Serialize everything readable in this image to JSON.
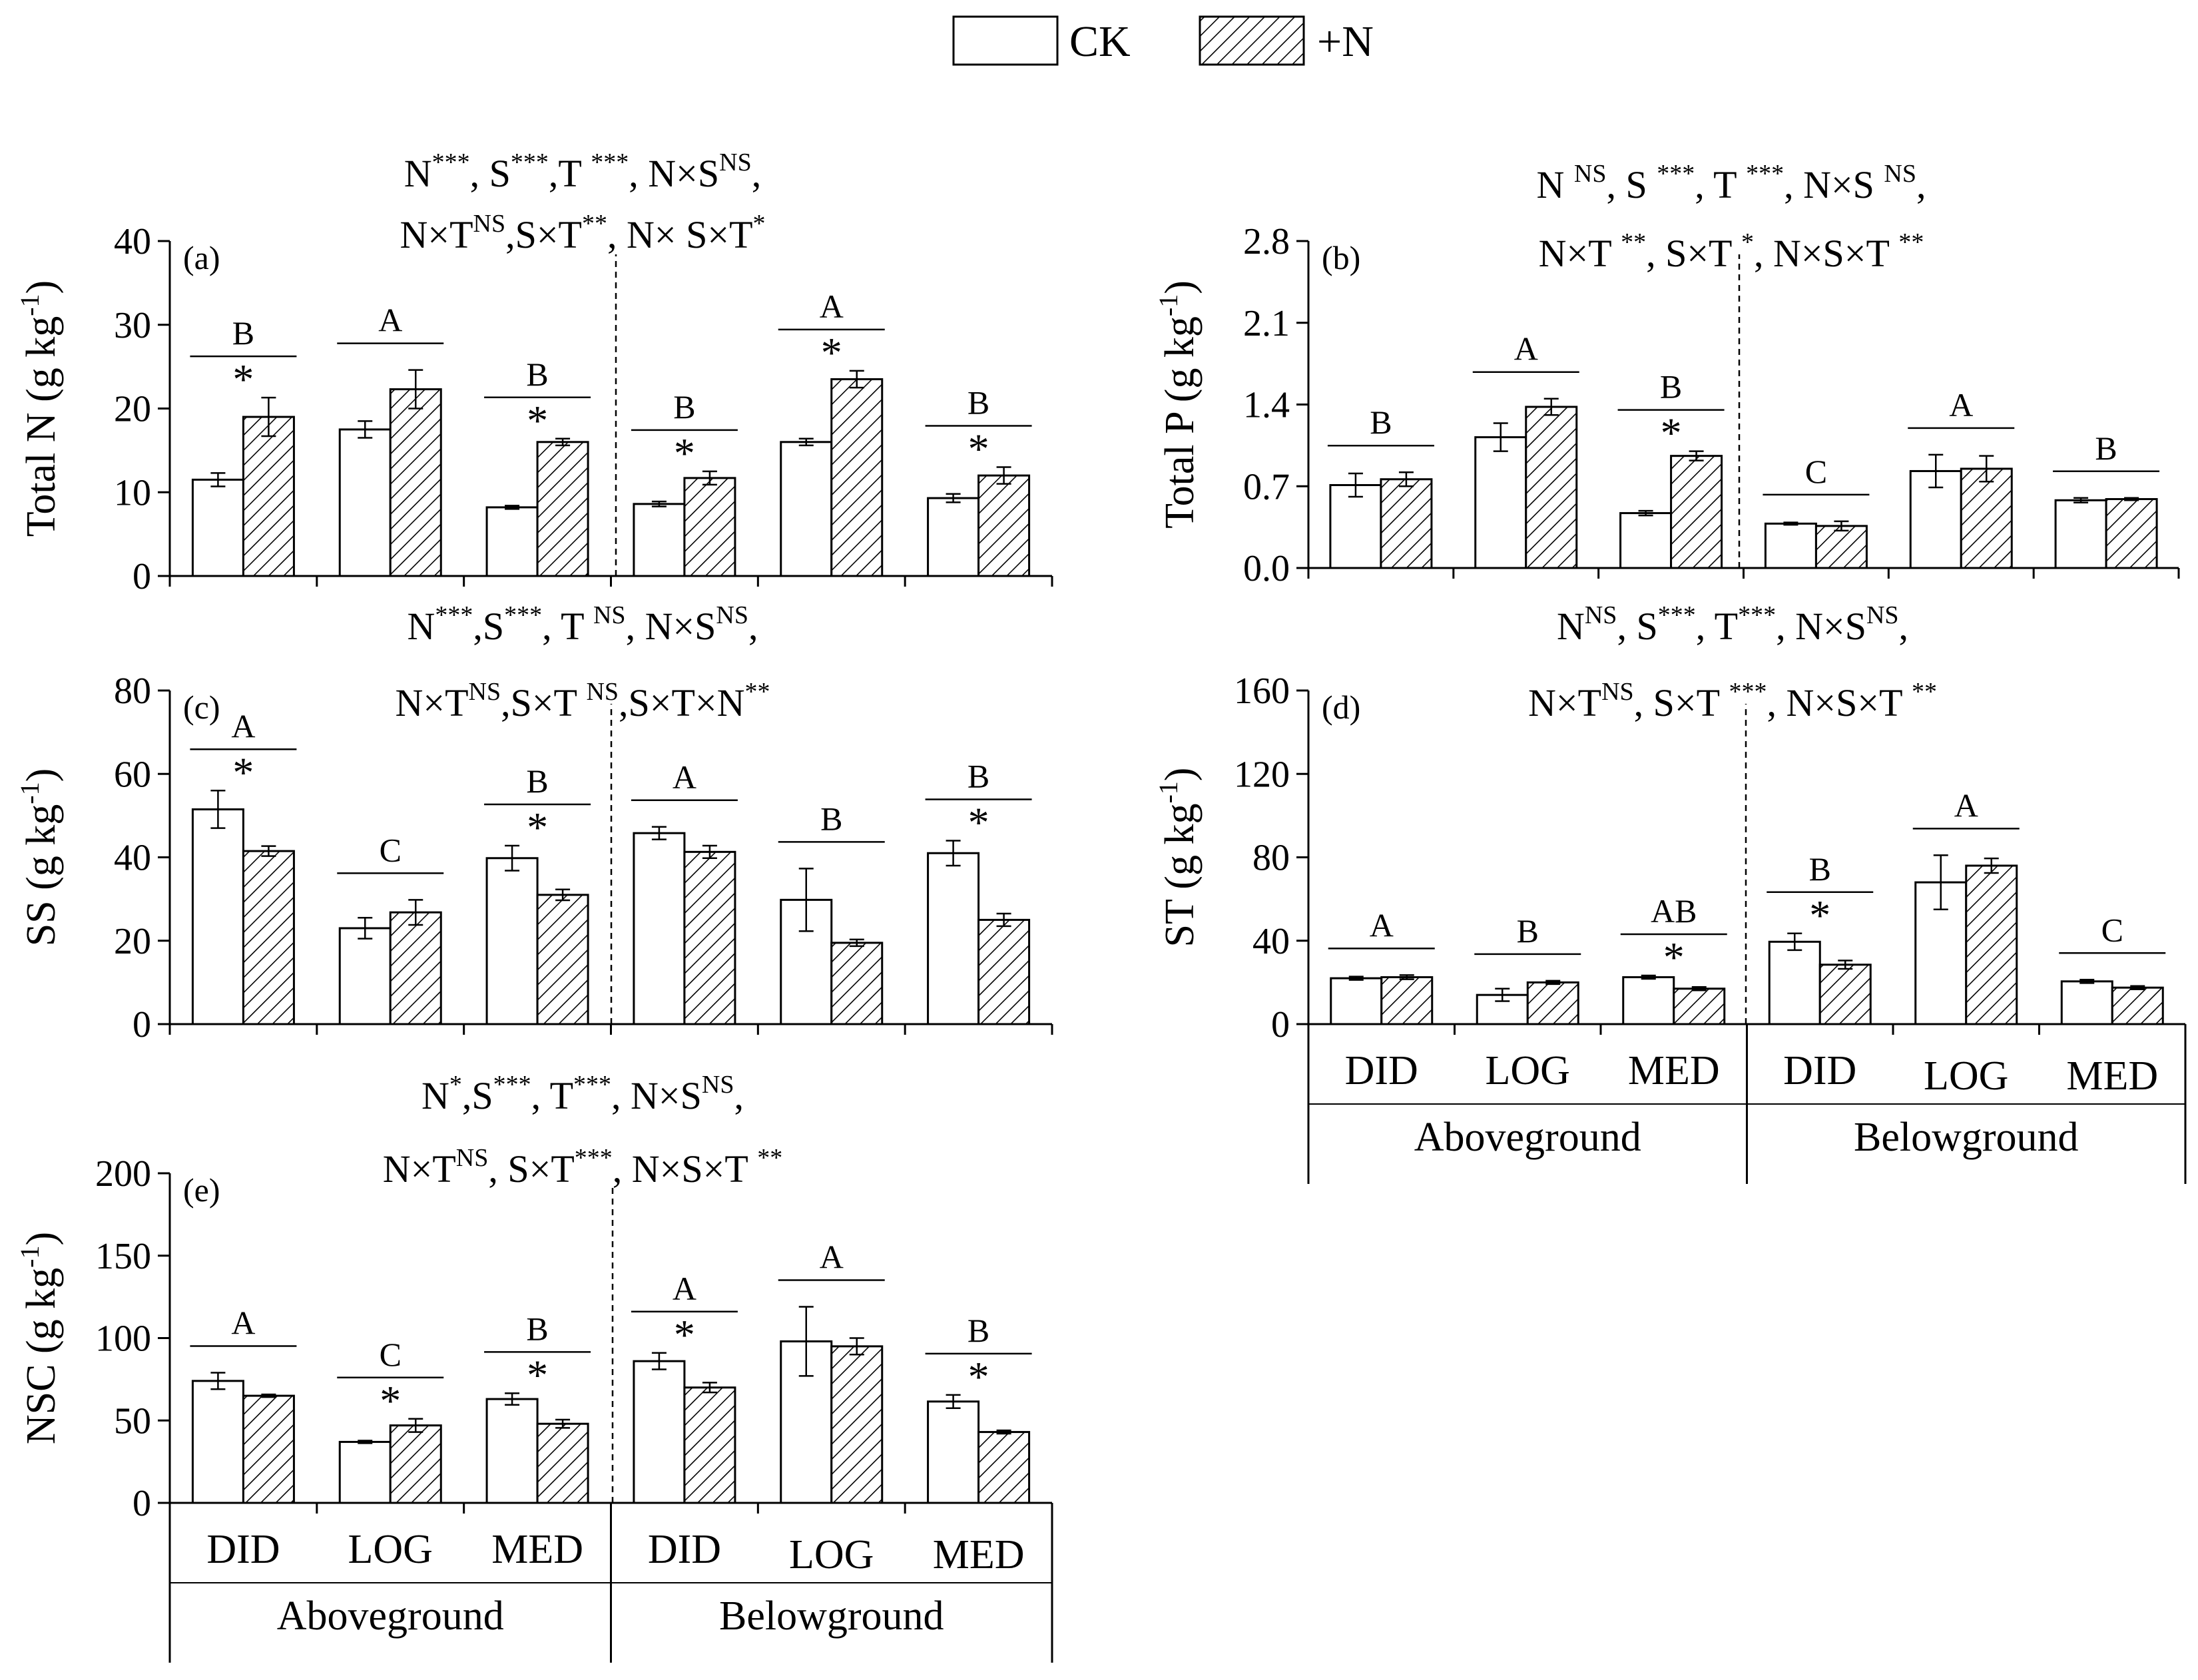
{
  "legend": {
    "ck_label": "CK",
    "n_label": "+N"
  },
  "chart_data": [
    {
      "id": "a",
      "type": "bar",
      "panel_label": "(a)",
      "ylabel_main": "Total N (g kg",
      "ylabel_sup": "-1",
      "ylabel_end": ")",
      "ylim": [
        0,
        40
      ],
      "yticks": [
        "0",
        "10",
        "20",
        "30",
        "40"
      ],
      "ytick_values": [
        0,
        10,
        20,
        30,
        40
      ],
      "stats": [
        [
          {
            "t": "N"
          },
          {
            "s": "***"
          },
          {
            "t": ", S"
          },
          {
            "s": "***"
          },
          {
            "t": ",T "
          },
          {
            "s": "***"
          },
          {
            "t": ", N×S"
          },
          {
            "s": "NS"
          },
          {
            "t": ","
          }
        ],
        [
          {
            "t": "N×T"
          },
          {
            "s": "NS"
          },
          {
            "t": ",S×T"
          },
          {
            "s": "**"
          },
          {
            "t": ", N× S×T"
          },
          {
            "s": "*"
          }
        ]
      ],
      "categories": [
        "DID",
        "LOG",
        "MED",
        "DID",
        "LOG",
        "MED"
      ],
      "groups": [
        "Aboveground",
        "Belowground"
      ],
      "series": [
        {
          "name": "CK",
          "values": [
            11.5,
            17.5,
            8.2,
            8.6,
            16.0,
            9.3
          ],
          "errors": [
            0.8,
            1.0,
            0.2,
            0.3,
            0.4,
            0.5
          ]
        },
        {
          "name": "+N",
          "values": [
            19.0,
            22.3,
            16.0,
            11.7,
            23.5,
            12.0
          ],
          "errors": [
            2.3,
            2.3,
            0.4,
            0.8,
            1.0,
            1.0
          ]
        }
      ],
      "sig_letters": [
        "B",
        "A",
        "B",
        "B",
        "A",
        "B"
      ],
      "stars": [
        true,
        false,
        true,
        true,
        true,
        true
      ],
      "show_category_labels": false
    },
    {
      "id": "b",
      "type": "bar",
      "panel_label": "(b)",
      "ylabel_main": "Total P (g kg",
      "ylabel_sup": "-1",
      "ylabel_end": ")",
      "ylim": [
        0,
        2.8
      ],
      "yticks": [
        "0.0",
        "0.7",
        "1.4",
        "2.1",
        "2.8"
      ],
      "ytick_values": [
        0,
        0.7,
        1.4,
        2.1,
        2.8
      ],
      "stats": [
        [
          {
            "t": "N "
          },
          {
            "s": "NS"
          },
          {
            "t": ", S "
          },
          {
            "s": "***"
          },
          {
            "t": ", T "
          },
          {
            "s": "***"
          },
          {
            "t": ", N×S "
          },
          {
            "s": "NS"
          },
          {
            "t": ","
          }
        ],
        [
          {
            "t": "N×T "
          },
          {
            "s": "**"
          },
          {
            "t": ", S×T "
          },
          {
            "s": "*"
          },
          {
            "t": ", N×S×T "
          },
          {
            "s": "**"
          }
        ]
      ],
      "categories": [
        "DID",
        "LOG",
        "MED",
        "DID",
        "LOG",
        "MED"
      ],
      "groups": [
        "Aboveground",
        "Belowground"
      ],
      "series": [
        {
          "name": "CK",
          "values": [
            0.71,
            1.12,
            0.47,
            0.38,
            0.83,
            0.58
          ],
          "errors": [
            0.1,
            0.12,
            0.02,
            0.01,
            0.14,
            0.02
          ]
        },
        {
          "name": "+N",
          "values": [
            0.76,
            1.38,
            0.96,
            0.36,
            0.85,
            0.59
          ],
          "errors": [
            0.06,
            0.07,
            0.04,
            0.04,
            0.11,
            0.01
          ]
        }
      ],
      "sig_letters": [
        "B",
        "A",
        "B",
        "C",
        "A",
        "B"
      ],
      "stars": [
        false,
        false,
        true,
        false,
        false,
        false
      ],
      "show_category_labels": false
    },
    {
      "id": "c",
      "type": "bar",
      "panel_label": "(c)",
      "ylabel_main": "SS (g kg",
      "ylabel_sup": "-1",
      "ylabel_end": ")",
      "ylim": [
        0,
        80
      ],
      "yticks": [
        "0",
        "20",
        "40",
        "60",
        "80"
      ],
      "ytick_values": [
        0,
        20,
        40,
        60,
        80
      ],
      "stats": [
        [
          {
            "t": "N"
          },
          {
            "s": "***"
          },
          {
            "t": ",S"
          },
          {
            "s": "***"
          },
          {
            "t": ", T "
          },
          {
            "s": "NS"
          },
          {
            "t": ", N×S"
          },
          {
            "s": "NS"
          },
          {
            "t": ","
          }
        ],
        [
          {
            "t": "N×T"
          },
          {
            "s": "NS"
          },
          {
            "t": ",S×T "
          },
          {
            "s": "NS"
          },
          {
            "t": ",S×T×N"
          },
          {
            "s": "**"
          }
        ]
      ],
      "categories": [
        "DID",
        "LOG",
        "MED",
        "DID",
        "LOG",
        "MED"
      ],
      "groups": [
        "Aboveground",
        "Belowground"
      ],
      "series": [
        {
          "name": "CK",
          "values": [
            51.5,
            23.0,
            39.8,
            45.8,
            29.8,
            41.0
          ],
          "errors": [
            4.5,
            2.5,
            3.0,
            1.5,
            7.5,
            3.0
          ]
        },
        {
          "name": "+N",
          "values": [
            41.5,
            26.8,
            31.0,
            41.3,
            19.5,
            25.0
          ],
          "errors": [
            1.2,
            3.0,
            1.3,
            1.5,
            0.8,
            1.5
          ]
        }
      ],
      "sig_letters": [
        "A",
        "C",
        "B",
        "A",
        "B",
        "B"
      ],
      "stars": [
        true,
        false,
        true,
        false,
        false,
        true
      ],
      "show_category_labels": false
    },
    {
      "id": "d",
      "type": "bar",
      "panel_label": "(d)",
      "ylabel_main": "ST (g kg",
      "ylabel_sup": "-1",
      "ylabel_end": ")",
      "ylim": [
        0,
        160
      ],
      "yticks": [
        "0",
        "40",
        "80",
        "120",
        "160"
      ],
      "ytick_values": [
        0,
        40,
        80,
        120,
        160
      ],
      "stats": [
        [
          {
            "t": "N"
          },
          {
            "s": "NS"
          },
          {
            "t": ", S"
          },
          {
            "s": "***"
          },
          {
            "t": ", T"
          },
          {
            "s": "***"
          },
          {
            "t": ", N×S"
          },
          {
            "s": "NS"
          },
          {
            "t": ","
          }
        ],
        [
          {
            "t": "N×T"
          },
          {
            "s": "NS"
          },
          {
            "t": ", S×T "
          },
          {
            "s": "***"
          },
          {
            "t": ", N×S×T "
          },
          {
            "s": "**"
          }
        ]
      ],
      "categories": [
        "DID",
        "LOG",
        "MED",
        "DID",
        "LOG",
        "MED"
      ],
      "groups": [
        "Aboveground",
        "Belowground"
      ],
      "series": [
        {
          "name": "CK",
          "values": [
            22.0,
            14.0,
            22.5,
            39.5,
            68.0,
            20.5
          ],
          "errors": [
            0.8,
            3.0,
            0.8,
            4.0,
            13.0,
            0.8
          ]
        },
        {
          "name": "+N",
          "values": [
            22.5,
            20.0,
            17.0,
            28.5,
            76.0,
            17.5
          ],
          "errors": [
            1.0,
            0.8,
            0.8,
            2.0,
            3.5,
            0.8
          ]
        }
      ],
      "sig_letters": [
        "A",
        "B",
        "AB",
        "B",
        "A",
        "C"
      ],
      "stars": [
        false,
        false,
        true,
        true,
        false,
        false
      ],
      "show_category_labels": true
    },
    {
      "id": "e",
      "type": "bar",
      "panel_label": "(e)",
      "ylabel_main": "NSC (g kg",
      "ylabel_sup": "-1",
      "ylabel_end": ")",
      "ylim": [
        0,
        200
      ],
      "yticks": [
        "0",
        "50",
        "100",
        "150",
        "200"
      ],
      "ytick_values": [
        0,
        50,
        100,
        150,
        200
      ],
      "stats": [
        [
          {
            "t": "N"
          },
          {
            "s": "*"
          },
          {
            "t": ",S"
          },
          {
            "s": "***"
          },
          {
            "t": ", T"
          },
          {
            "s": "***"
          },
          {
            "t": ", N×S"
          },
          {
            "s": "NS"
          },
          {
            "t": ","
          }
        ],
        [
          {
            "t": "N×T"
          },
          {
            "s": "NS"
          },
          {
            "t": ", S×T"
          },
          {
            "s": "***"
          },
          {
            "t": ", N×S×T "
          },
          {
            "s": "**"
          }
        ]
      ],
      "categories": [
        "DID",
        "LOG",
        "MED",
        "DID",
        "LOG",
        "MED"
      ],
      "groups": [
        "Aboveground",
        "Belowground"
      ],
      "series": [
        {
          "name": "CK",
          "values": [
            74.0,
            37.0,
            63.0,
            86.0,
            98.0,
            61.5
          ],
          "errors": [
            5.0,
            0.8,
            3.5,
            5.0,
            21.0,
            4.0
          ]
        },
        {
          "name": "+N",
          "values": [
            65.0,
            47.0,
            48.0,
            70.0,
            95.0,
            43.0
          ],
          "errors": [
            0.8,
            4.0,
            2.5,
            3.0,
            5.0,
            1.0
          ]
        }
      ],
      "sig_letters": [
        "A",
        "C",
        "B",
        "A",
        "A",
        "B"
      ],
      "stars": [
        false,
        true,
        true,
        true,
        false,
        true
      ],
      "show_category_labels": true
    }
  ]
}
